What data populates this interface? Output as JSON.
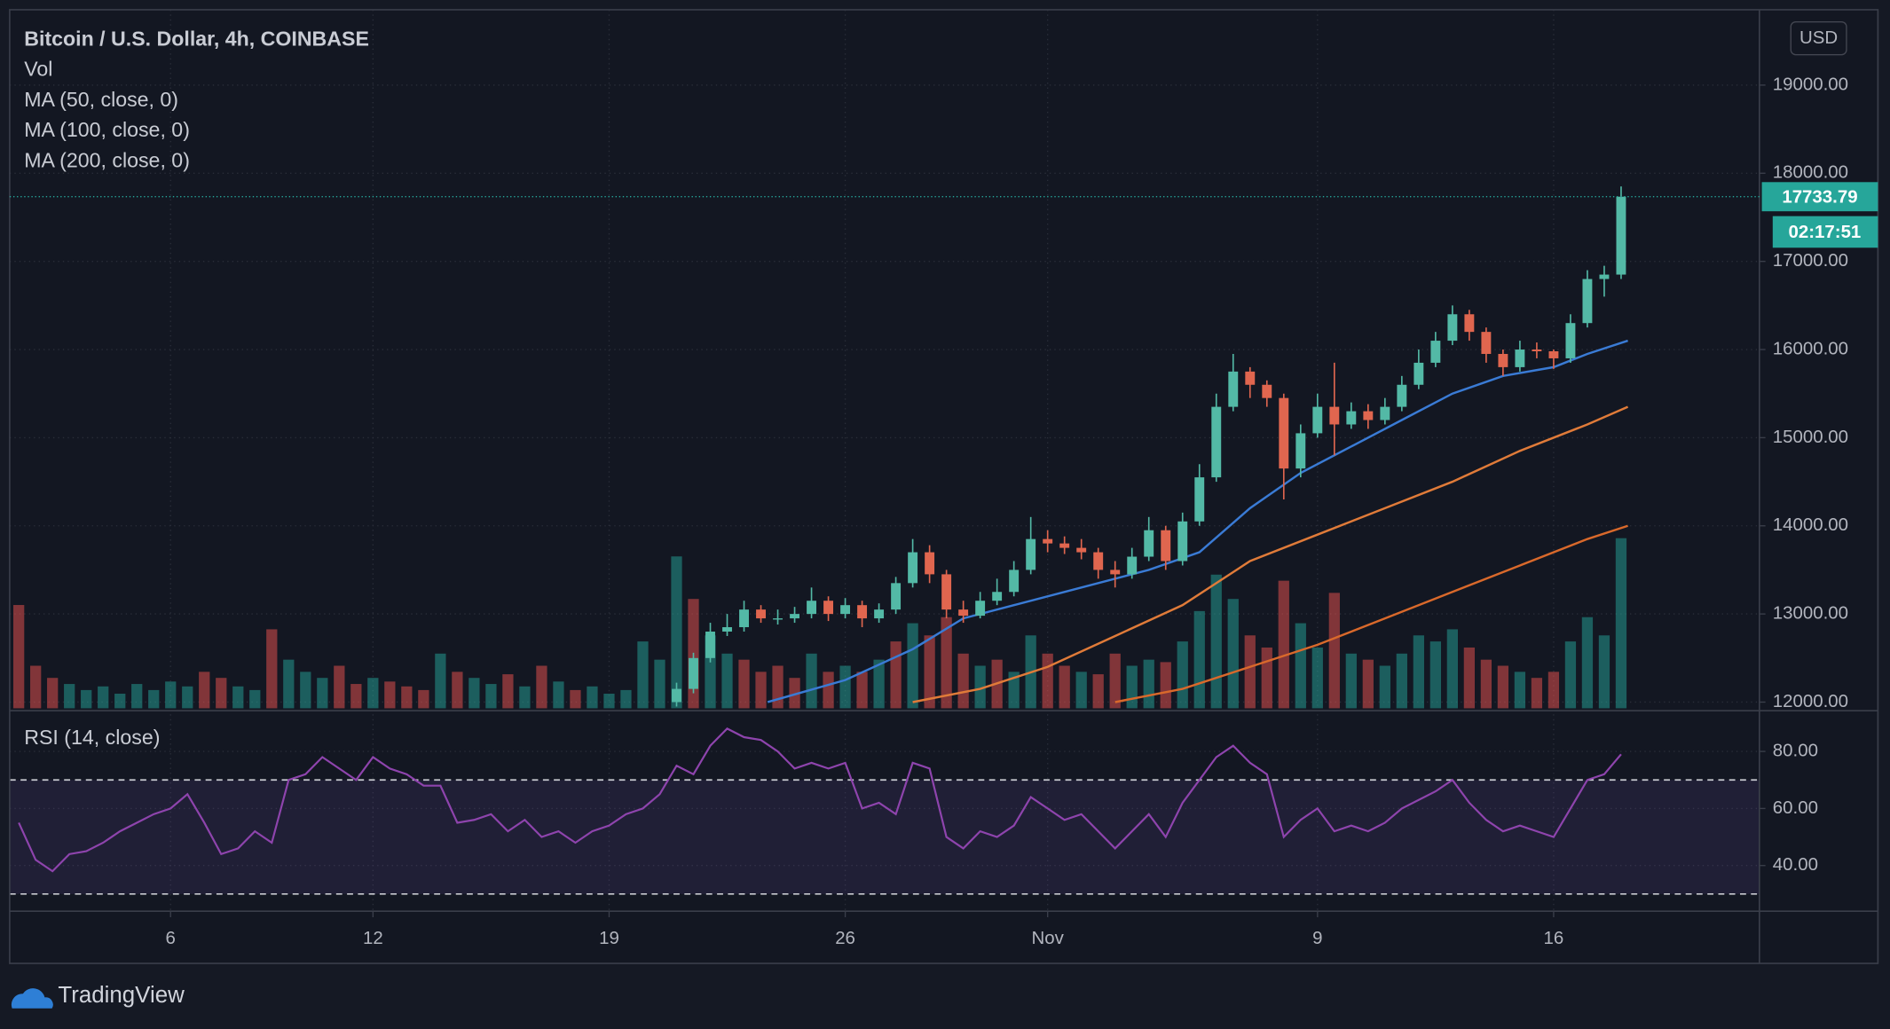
{
  "brand": "TradingView",
  "chart_data": [
    {
      "type": "candlestick",
      "title": "Bitcoin / U.S. Dollar, 4h, COINBASE",
      "currency": "USD",
      "countdown": "02:17:51",
      "up_color": "#53b9a6",
      "down_color": "#e0664f",
      "x": [
        20,
        20.5,
        21,
        21.5,
        22,
        22.5,
        23,
        23.5,
        24,
        24.5,
        25,
        25.5,
        26,
        26.5,
        27,
        27.5,
        28,
        28.5,
        29,
        29.5,
        30,
        30.5,
        31,
        31.5,
        32,
        32.5,
        33,
        33.5,
        34,
        34.5,
        35,
        35.5,
        36,
        36.5,
        37,
        37.5,
        38,
        38.5,
        39,
        39.5,
        40,
        40.5,
        41,
        41.5,
        42,
        42.5,
        43,
        43.5,
        44,
        44.5,
        45,
        45.5,
        46,
        46.5,
        47,
        47.5,
        48
      ],
      "open": [
        12000,
        12150,
        12500,
        12800,
        12850,
        13050,
        12950,
        12950,
        13000,
        13150,
        13000,
        13100,
        12950,
        13050,
        13350,
        13700,
        13450,
        13050,
        12980,
        13150,
        13250,
        13500,
        13850,
        13800,
        13750,
        13700,
        13500,
        13450,
        13650,
        13950,
        13600,
        14050,
        14550,
        15350,
        15750,
        15600,
        15450,
        14650,
        15050,
        15350,
        15150,
        15300,
        15200,
        15350,
        15600,
        15850,
        16100,
        16400,
        16200,
        15950,
        15800,
        16000,
        15980,
        15900,
        16300,
        16800,
        16850
      ],
      "high": [
        12220,
        12560,
        12900,
        13000,
        13150,
        13100,
        13050,
        13080,
        13300,
        13200,
        13180,
        13150,
        13120,
        13420,
        13850,
        13780,
        13500,
        13150,
        13250,
        13400,
        13600,
        14100,
        13950,
        13880,
        13850,
        13750,
        13600,
        13750,
        14100,
        14000,
        14150,
        14700,
        15500,
        15950,
        15800,
        15650,
        15500,
        15150,
        15500,
        15850,
        15400,
        15380,
        15450,
        15700,
        16000,
        16200,
        16500,
        16450,
        16250,
        16000,
        16100,
        16080,
        16000,
        16400,
        16900,
        16950,
        17850
      ],
      "low": [
        11950,
        12100,
        12450,
        12750,
        12800,
        12900,
        12880,
        12900,
        12950,
        12920,
        12950,
        12850,
        12900,
        13000,
        13300,
        13350,
        12950,
        12900,
        12950,
        13100,
        13200,
        13450,
        13700,
        13680,
        13620,
        13400,
        13300,
        13400,
        13600,
        13500,
        13550,
        14000,
        14500,
        15300,
        15450,
        15350,
        14300,
        14550,
        15000,
        14800,
        15100,
        15100,
        15150,
        15300,
        15550,
        15800,
        16050,
        16100,
        15850,
        15700,
        15750,
        15900,
        15780,
        15850,
        16250,
        16600,
        16800
      ],
      "close": [
        12150,
        12500,
        12800,
        12850,
        13050,
        12950,
        12950,
        13000,
        13150,
        13000,
        13100,
        12950,
        13050,
        13350,
        13700,
        13450,
        13050,
        12980,
        13150,
        13250,
        13500,
        13850,
        13800,
        13750,
        13700,
        13500,
        13450,
        13650,
        13950,
        13600,
        14050,
        14550,
        15350,
        15750,
        15600,
        15450,
        14650,
        15050,
        15350,
        15150,
        15300,
        15200,
        15350,
        15600,
        15850,
        16100,
        16400,
        16200,
        15950,
        15800,
        16000,
        15980,
        15900,
        16300,
        16800,
        16850,
        17733.79
      ],
      "volume": {
        "name": "Vol",
        "ylim": [
          0,
          575
        ],
        "x": [
          0.5,
          1,
          1.5,
          2,
          2.5,
          3,
          3.5,
          4,
          4.5,
          5,
          5.5,
          6,
          6.5,
          7,
          7.5,
          8,
          8.5,
          9,
          9.5,
          10,
          10.5,
          11,
          11.5,
          12,
          12.5,
          13,
          13.5,
          14,
          14.5,
          15,
          15.5,
          16,
          16.5,
          17,
          17.5,
          18,
          18.5,
          19,
          19.5,
          20,
          20.5,
          21,
          21.5,
          22,
          22.5,
          23,
          23.5,
          24,
          24.5,
          25,
          25.5,
          26,
          26.5,
          27,
          27.5,
          28,
          28.5,
          29,
          29.5,
          30,
          30.5,
          31,
          31.5,
          32,
          32.5,
          33,
          33.5,
          34,
          34.5,
          35,
          35.5,
          36,
          36.5,
          37,
          37.5,
          38,
          38.5,
          39,
          39.5,
          40,
          40.5,
          41,
          41.5,
          42,
          42.5,
          43,
          43.5,
          44,
          44.5,
          45,
          45.5,
          46,
          46.5,
          47,
          47.5,
          48
        ],
        "values": [
          85,
          35,
          25,
          20,
          15,
          18,
          12,
          20,
          15,
          22,
          18,
          30,
          25,
          18,
          15,
          65,
          40,
          30,
          25,
          35,
          20,
          25,
          22,
          18,
          15,
          45,
          30,
          25,
          20,
          28,
          18,
          35,
          22,
          15,
          18,
          12,
          15,
          55,
          40,
          125,
          90,
          60,
          45,
          40,
          30,
          35,
          25,
          45,
          30,
          35,
          30,
          40,
          55,
          70,
          60,
          75,
          45,
          35,
          40,
          30,
          60,
          45,
          35,
          30,
          28,
          45,
          35,
          40,
          38,
          55,
          80,
          110,
          90,
          60,
          50,
          105,
          70,
          50,
          95,
          45,
          40,
          35,
          45,
          60,
          55,
          65,
          50,
          40,
          35,
          30,
          25,
          30,
          55,
          75,
          60,
          140
        ],
        "colors": [
          "#ef5350",
          "#ef5350",
          "#ef5350",
          "#26a69a",
          "#26a69a",
          "#26a69a",
          "#26a69a",
          "#26a69a",
          "#26a69a",
          "#26a69a",
          "#26a69a",
          "#ef5350",
          "#ef5350",
          "#26a69a",
          "#26a69a",
          "#ef5350",
          "#26a69a",
          "#26a69a",
          "#26a69a",
          "#ef5350",
          "#ef5350",
          "#26a69a",
          "#ef5350",
          "#ef5350",
          "#ef5350",
          "#26a69a",
          "#ef5350",
          "#26a69a",
          "#26a69a",
          "#ef5350",
          "#26a69a",
          "#ef5350",
          "#26a69a",
          "#ef5350",
          "#26a69a",
          "#26a69a",
          "#26a69a",
          "#26a69a",
          "#26a69a",
          "#26a69a",
          "#ef5350",
          "#26a69a",
          "#26a69a",
          "#ef5350",
          "#ef5350",
          "#ef5350",
          "#ef5350",
          "#26a69a",
          "#ef5350",
          "#26a69a",
          "#ef5350",
          "#26a69a",
          "#ef5350",
          "#26a69a",
          "#ef5350",
          "#ef5350",
          "#ef5350",
          "#26a69a",
          "#ef5350",
          "#26a69a",
          "#26a69a",
          "#ef5350",
          "#ef5350",
          "#26a69a",
          "#ef5350",
          "#ef5350",
          "#26a69a",
          "#26a69a",
          "#ef5350",
          "#26a69a",
          "#26a69a",
          "#26a69a",
          "#26a69a",
          "#ef5350",
          "#ef5350",
          "#ef5350",
          "#26a69a",
          "#26a69a",
          "#ef5350",
          "#26a69a",
          "#ef5350",
          "#26a69a",
          "#26a69a",
          "#26a69a",
          "#26a69a",
          "#26a69a",
          "#ef5350",
          "#ef5350",
          "#ef5350",
          "#26a69a",
          "#ef5350",
          "#ef5350",
          "#26a69a",
          "#26a69a",
          "#26a69a",
          "#26a69a"
        ]
      },
      "series": [
        {
          "name": "MA (50, close, 0)",
          "color": "#3a7bd5",
          "x": [
            22.7,
            25,
            27,
            28.5,
            30,
            32,
            34,
            35.5,
            37,
            38.5,
            40,
            41.5,
            43,
            44.5,
            46,
            47,
            48.2
          ],
          "values": [
            12000,
            12250,
            12600,
            12950,
            13100,
            13300,
            13500,
            13700,
            14200,
            14600,
            14900,
            15200,
            15500,
            15700,
            15800,
            15950,
            16100
          ]
        },
        {
          "name": "MA (100, close, 0)",
          "color": "#e07b39",
          "x": [
            27,
            29,
            31,
            33,
            35,
            37,
            39,
            41,
            43,
            45,
            47,
            48.2
          ],
          "values": [
            12000,
            12150,
            12400,
            12750,
            13100,
            13600,
            13900,
            14200,
            14500,
            14850,
            15150,
            15350
          ]
        },
        {
          "name": "MA (200, close, 0)",
          "color": "#d9692b",
          "x": [
            33,
            35,
            37,
            39,
            41,
            43,
            45,
            47,
            48.2
          ],
          "values": [
            12000,
            12150,
            12400,
            12650,
            12950,
            13250,
            13550,
            13850,
            14000
          ]
        }
      ],
      "xlim": [
        0.23,
        52.1
      ],
      "xticks": [
        {
          "value": 5,
          "label": "6"
        },
        {
          "value": 11,
          "label": "12"
        },
        {
          "value": 18,
          "label": "19"
        },
        {
          "value": 25,
          "label": "26"
        },
        {
          "value": 31,
          "label": "Nov"
        },
        {
          "value": 39,
          "label": "9"
        },
        {
          "value": 46,
          "label": "16"
        }
      ],
      "ylim": [
        11930,
        19855
      ],
      "yticks": [
        {
          "value": 12000,
          "label": "12000.00"
        },
        {
          "value": 13000,
          "label": "13000.00"
        },
        {
          "value": 14000,
          "label": "14000.00"
        },
        {
          "value": 15000,
          "label": "15000.00"
        },
        {
          "value": 16000,
          "label": "16000.00"
        },
        {
          "value": 17000,
          "label": "17000.00"
        },
        {
          "value": 18000,
          "label": "18000.00"
        },
        {
          "value": 19000,
          "label": "19000.00"
        }
      ],
      "grid": true
    },
    {
      "type": "line",
      "name": "RSI (14, close)",
      "color": "#8e44ad",
      "band_color": "#7e57c2",
      "bands": [
        30,
        70
      ],
      "x": [
        0.5,
        1,
        1.5,
        2,
        2.5,
        3,
        3.5,
        4,
        4.5,
        5,
        5.5,
        6,
        6.5,
        7,
        7.5,
        8,
        8.5,
        9,
        9.5,
        10,
        10.5,
        11,
        11.5,
        12,
        12.5,
        13,
        13.5,
        14,
        14.5,
        15,
        15.5,
        16,
        16.5,
        17,
        17.5,
        18,
        18.5,
        19,
        19.5,
        20,
        20.5,
        21,
        21.5,
        22,
        22.5,
        23,
        23.5,
        24,
        24.5,
        25,
        25.5,
        26,
        26.5,
        27,
        27.5,
        28,
        28.5,
        29,
        29.5,
        30,
        30.5,
        31,
        31.5,
        32,
        32.5,
        33,
        33.5,
        34,
        34.5,
        35,
        35.5,
        36,
        36.5,
        37,
        37.5,
        38,
        38.5,
        39,
        39.5,
        40,
        40.5,
        41,
        41.5,
        42,
        42.5,
        43,
        43.5,
        44,
        44.5,
        45,
        45.5,
        46,
        46.5,
        47,
        47.5,
        48
      ],
      "values": [
        55,
        42,
        38,
        44,
        45,
        48,
        52,
        55,
        58,
        60,
        65,
        55,
        44,
        46,
        52,
        48,
        70,
        72,
        78,
        74,
        70,
        78,
        74,
        72,
        68,
        68,
        55,
        56,
        58,
        52,
        56,
        50,
        52,
        48,
        52,
        54,
        58,
        60,
        65,
        75,
        72,
        82,
        88,
        85,
        84,
        80,
        74,
        76,
        74,
        76,
        60,
        62,
        58,
        76,
        74,
        50,
        46,
        52,
        50,
        54,
        64,
        60,
        56,
        58,
        52,
        46,
        52,
        58,
        50,
        62,
        70,
        78,
        82,
        76,
        72,
        50,
        56,
        60,
        52,
        54,
        52,
        55,
        60,
        63,
        66,
        70,
        62,
        56,
        52,
        54,
        52,
        50,
        60,
        70,
        72,
        79
      ],
      "xlim": [
        0.23,
        52.1
      ],
      "ylim": [
        24,
        93
      ],
      "yticks": [
        {
          "value": 40,
          "label": "40.00"
        },
        {
          "value": 60,
          "label": "60.00"
        },
        {
          "value": 80,
          "label": "80.00"
        }
      ],
      "grid": true
    }
  ]
}
